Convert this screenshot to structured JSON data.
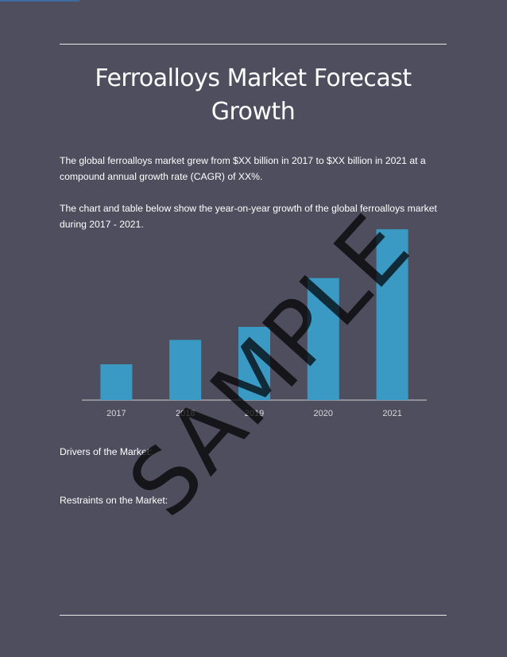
{
  "header": {
    "title_line1": "Ferroalloys Market Forecast",
    "title_line2": "Growth"
  },
  "body": {
    "paragraph1": "The global ferroalloys market grew from $XX billion in 2017 to $XX billion in 2021 at a compound annual growth rate (CAGR) of XX%.",
    "paragraph2": "The chart and table below show the year-on-year growth of the global ferroalloys market during 2017 - 2021."
  },
  "sections": {
    "drivers": "Drivers of the Market:",
    "restraints": "Restraints on the Market:"
  },
  "watermark": "SAMPLE",
  "colors": {
    "background": "#4f4e5f",
    "bar": "#3a9ac4",
    "text": "#ffffff"
  },
  "chart_data": {
    "type": "bar",
    "categories": [
      "2017",
      "2018",
      "2019",
      "2020",
      "2021"
    ],
    "values": [
      22,
      37,
      45,
      75,
      105
    ],
    "title": "",
    "xlabel": "",
    "ylabel": "",
    "ylim": [
      0,
      110
    ],
    "grid": false,
    "legend": "none"
  }
}
